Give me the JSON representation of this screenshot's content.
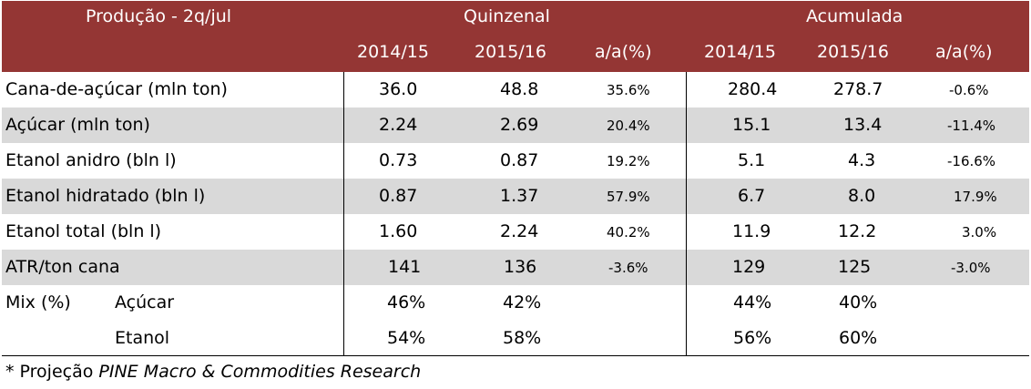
{
  "header": {
    "title": "Produção - 2q/jul",
    "group1": "Quinzenal",
    "group2": "Acumulada",
    "cols": [
      "2014/15",
      "2015/16",
      "a/a(%)",
      "2014/15",
      "2015/16",
      "a/a(%)"
    ]
  },
  "rows": [
    {
      "label": "Cana-de-açúcar (mln ton)",
      "v": [
        "36.0",
        "48.8",
        "35.6%",
        "280.4",
        "278.7",
        "-0.6%"
      ]
    },
    {
      "label": "Açúcar (mln ton)",
      "v": [
        "2.24",
        "2.69",
        "20.4%",
        "15.1",
        "13.4",
        "-11.4%"
      ]
    },
    {
      "label": "Etanol anidro (bln l)",
      "v": [
        "0.73",
        "0.87",
        "19.2%",
        "5.1",
        "4.3",
        "-16.6%"
      ]
    },
    {
      "label": "Etanol hidratado (bln l)",
      "v": [
        "0.87",
        "1.37",
        "57.9%",
        "6.7",
        "8.0",
        "17.9%"
      ]
    },
    {
      "label": "Etanol total (bln l)",
      "v": [
        "1.60",
        "2.24",
        "40.2%",
        "11.9",
        "12.2",
        "3.0%"
      ]
    },
    {
      "label": "ATR/ton cana",
      "v": [
        "141",
        "136",
        "-3.6%",
        "129",
        "125",
        "-3.0%"
      ]
    }
  ],
  "mix": {
    "label": "Mix (%)",
    "rows": [
      {
        "label": "Açúcar",
        "v": [
          "46%",
          "42%",
          "44%",
          "40%"
        ]
      },
      {
        "label": "Etanol",
        "v": [
          "54%",
          "58%",
          "56%",
          "60%"
        ]
      }
    ]
  },
  "footnote": {
    "prefix": "* Projeção ",
    "source": "PINE Macro & Commodities Research"
  }
}
